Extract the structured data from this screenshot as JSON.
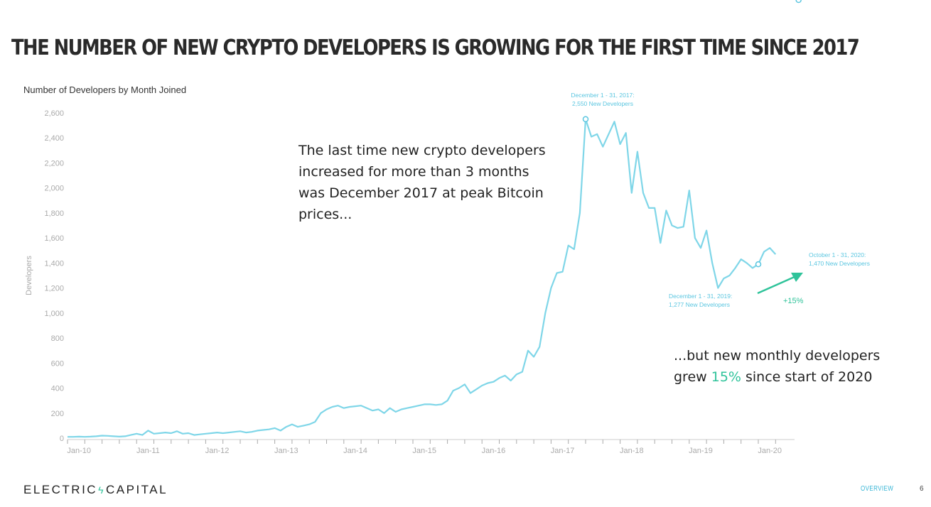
{
  "slide": {
    "title": "THE NUMBER OF NEW CRYPTO DEVELOPERS IS GROWING FOR THE FIRST TIME SINCE 2017",
    "note1": "The last time new crypto developers increased for more than 3 months was December 2017 at peak Bitcoin prices...",
    "note2_before": "...but new monthly developers grew ",
    "note2_highlight": "15%",
    "note2_after": " since start of 2020",
    "logo_left": "ELECTRIC",
    "logo_right": "CAPITAL",
    "footer_section": "OVERVIEW",
    "page_number": "6"
  },
  "colors": {
    "line": "#7fd6e8",
    "annotation": "#5bc6e0",
    "accent": "#2fc39a",
    "axis_text": "#aaaaaa"
  },
  "chart_data": {
    "type": "line",
    "title": "Number of Developers by Month Joined",
    "xlabel": "",
    "ylabel": "Developers",
    "ylim": [
      0,
      2600
    ],
    "yticks": [
      0,
      200,
      400,
      600,
      800,
      1000,
      1200,
      1400,
      1600,
      1800,
      2000,
      2200,
      2400,
      2600
    ],
    "ytick_labels": [
      "0",
      "200",
      "400",
      "600",
      "800",
      "1,000",
      "1,200",
      "1,400",
      "1,600",
      "1,800",
      "2,000",
      "2,200",
      "2,400",
      "2,600"
    ],
    "xtick_labels": [
      "Jan-10",
      "Jan-11",
      "Jan-12",
      "Jan-13",
      "Jan-14",
      "Jan-15",
      "Jan-16",
      "Jan-17",
      "Jan-18",
      "Jan-19",
      "Jan-20"
    ],
    "grid": false,
    "series": [
      {
        "values": [
          10,
          10,
          12,
          10,
          12,
          15,
          20,
          18,
          15,
          12,
          15,
          25,
          35,
          25,
          60,
          35,
          40,
          45,
          40,
          55,
          35,
          40,
          25,
          30,
          35,
          40,
          45,
          40,
          45,
          50,
          55,
          45,
          50,
          60,
          65,
          70,
          80,
          60,
          90,
          110,
          90,
          100,
          110,
          130,
          200,
          230,
          250,
          260,
          240,
          250,
          255,
          260,
          240,
          220,
          230,
          200,
          240,
          210,
          230,
          240,
          250,
          260,
          270,
          270,
          265,
          270,
          300,
          380,
          400,
          430,
          360,
          390,
          420,
          440,
          450,
          480,
          500,
          460,
          510,
          530,
          700,
          650,
          730,
          1000,
          1200,
          1320,
          1330,
          1540,
          1510,
          1800,
          2550,
          2410,
          2430,
          2330,
          2430,
          2530,
          2350,
          2440,
          1960,
          2290,
          1960,
          1840,
          1840,
          1560,
          1820,
          1700,
          1680,
          1690,
          1980,
          1600,
          1520,
          1660,
          1400,
          1200,
          1277,
          1300,
          1360,
          1430,
          1400,
          1360,
          1390,
          1490,
          1520,
          1470
        ]
      }
    ],
    "annotations": [
      {
        "label_line1": "December 1 - 31, 2017:",
        "label_line2": "2,550 New Developers"
      },
      {
        "label_line1": "December 1 - 31, 2019:",
        "label_line2": "1,277 New Developers"
      },
      {
        "label_line1": "October 1 - 31, 2020:",
        "label_line2": "1,470 New Developers"
      }
    ],
    "change_label": "+15%"
  }
}
